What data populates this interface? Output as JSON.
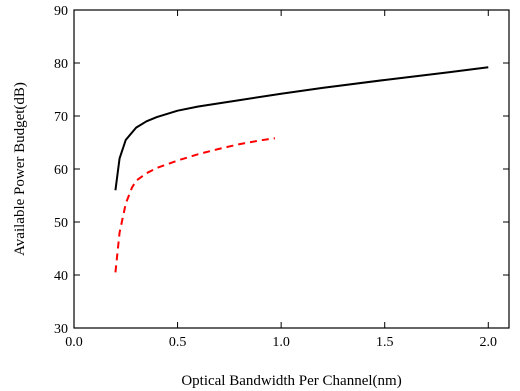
{
  "chart_data": {
    "type": "line",
    "title": "",
    "xlabel": "Optical Bandwidth Per Channel(nm)",
    "ylabel": "Available Power Budget(dB)",
    "xlim": [
      0.0,
      2.1
    ],
    "ylim": [
      30,
      90
    ],
    "xticks": [
      "0.0",
      "0.5",
      "1.0",
      "1.5",
      "2.0"
    ],
    "yticks": [
      "30",
      "40",
      "50",
      "60",
      "70",
      "80",
      "90"
    ],
    "grid": false,
    "legend": "none",
    "series": [
      {
        "color": "#000000",
        "style": "solid",
        "x": [
          0.2,
          0.22,
          0.25,
          0.3,
          0.35,
          0.4,
          0.5,
          0.6,
          0.8,
          1.0,
          1.2,
          1.5,
          1.8,
          2.0
        ],
        "y": [
          56,
          62,
          65.5,
          67.8,
          69,
          69.8,
          71,
          71.8,
          73,
          74.2,
          75.3,
          76.8,
          78.2,
          79.2
        ]
      },
      {
        "color": "#ff0000",
        "style": "dashed",
        "x": [
          0.2,
          0.22,
          0.25,
          0.28,
          0.3,
          0.35,
          0.4,
          0.5,
          0.6,
          0.7,
          0.8,
          0.9,
          0.97
        ],
        "y": [
          40.5,
          48,
          53.5,
          56.5,
          57.8,
          59.2,
          60.2,
          61.6,
          62.8,
          63.8,
          64.7,
          65.4,
          65.8
        ]
      }
    ]
  }
}
